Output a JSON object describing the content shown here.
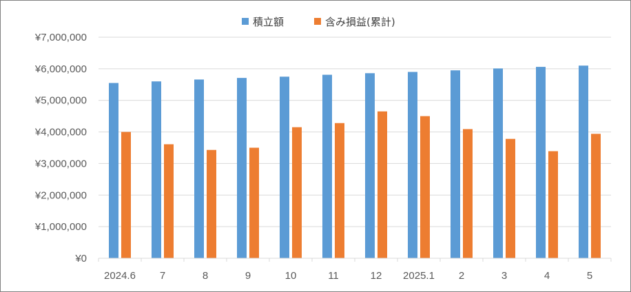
{
  "chart_data": {
    "type": "bar",
    "categories": [
      "2024.6",
      "7",
      "8",
      "9",
      "10",
      "11",
      "12",
      "2025.1",
      "2",
      "3",
      "4",
      "5"
    ],
    "series": [
      {
        "name": "積立額",
        "color": "#5b9bd5",
        "values": [
          5550000,
          5600000,
          5660000,
          5710000,
          5750000,
          5810000,
          5860000,
          5900000,
          5950000,
          6010000,
          6060000,
          6100000
        ]
      },
      {
        "name": "含み損益(累計)",
        "color": "#ed7d31",
        "values": [
          4000000,
          3610000,
          3430000,
          3500000,
          4150000,
          4280000,
          4650000,
          4500000,
          4090000,
          3780000,
          3390000,
          3940000
        ]
      }
    ],
    "y_ticks": [
      "¥0",
      "¥1,000,000",
      "¥2,000,000",
      "¥3,000,000",
      "¥4,000,000",
      "¥5,000,000",
      "¥6,000,000",
      "¥7,000,000"
    ],
    "ylim": [
      0,
      7000000
    ],
    "title": "",
    "xlabel": "",
    "ylabel": "",
    "grid": true,
    "legend_position": "top"
  }
}
